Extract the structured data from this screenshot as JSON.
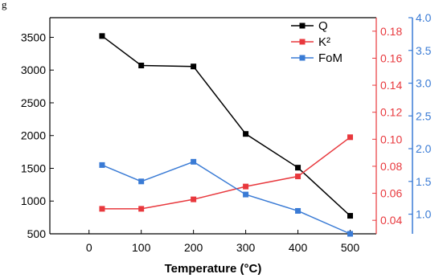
{
  "header": {
    "partial_text": "g"
  },
  "colors": {
    "q": "#000000",
    "k2": "#e8383d",
    "fom": "#3a7bd5"
  },
  "chart_data": {
    "type": "line",
    "x": [
      25,
      100,
      200,
      300,
      400,
      500
    ],
    "xlabel": "Temperature (°C)",
    "xlim": [
      -75,
      550
    ],
    "xticks": [
      0,
      100,
      200,
      300,
      400,
      500
    ],
    "series": [
      {
        "name": "Q",
        "axis": "left",
        "color": "#000000",
        "values": [
          3520,
          3070,
          3055,
          2025,
          1510,
          775
        ]
      },
      {
        "name": "K²",
        "axis": "right1",
        "color": "#e8383d",
        "values": [
          0.0485,
          0.0485,
          0.0555,
          0.065,
          0.0725,
          0.1015
        ]
      },
      {
        "name": "FoM",
        "axis": "right2",
        "color": "#3a7bd5",
        "values": [
          1.75,
          1.5,
          1.8,
          1.3,
          1.05,
          0.7
        ]
      }
    ],
    "y_axes": {
      "left": {
        "ylim": [
          500,
          3800
        ],
        "ticks": [
          500,
          1000,
          1500,
          2000,
          2500,
          3000,
          3500
        ],
        "color": "#000000"
      },
      "right1": {
        "ylim": [
          0.03,
          0.19
        ],
        "ticks": [
          0.04,
          0.06,
          0.08,
          0.1,
          0.12,
          0.14,
          0.16,
          0.18
        ],
        "tick_labels": [
          "0.04",
          "0.06",
          "0.08",
          "0.10",
          "0.12",
          "0.14",
          "0.16",
          "0.18"
        ],
        "color": "#e8383d"
      },
      "right2": {
        "ylim": [
          0.7,
          4.0
        ],
        "ticks": [
          1.0,
          1.5,
          2.0,
          2.5,
          3.0,
          3.5,
          4.0
        ],
        "tick_labels": [
          "1.0",
          "1.5",
          "2.0",
          "2.5",
          "3.0",
          "3.5",
          "4.0"
        ],
        "color": "#3a7bd5"
      }
    },
    "legend": {
      "position": "top-right",
      "entries": [
        "Q",
        "K²",
        "FoM"
      ]
    }
  }
}
